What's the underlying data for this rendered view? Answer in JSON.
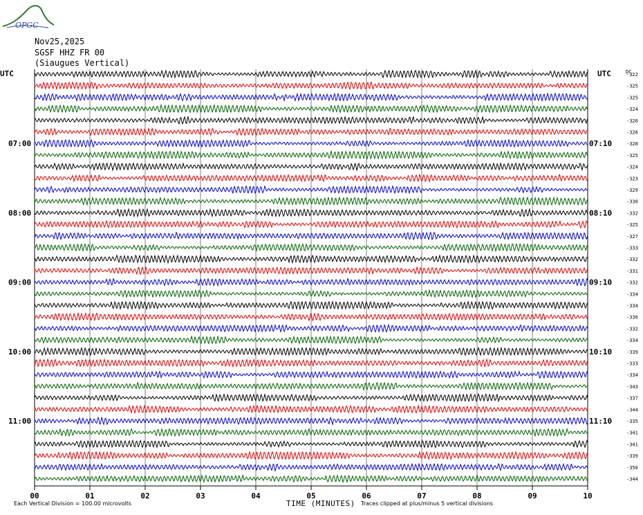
{
  "logo": {
    "text": "OPGC"
  },
  "header": {
    "date": "Nov25,2025",
    "station": "SGSF HHZ FR 00",
    "location": "(Siaugues Vertical)"
  },
  "chart_data": {
    "type": "line",
    "title": "",
    "xlabel": "TIME (MINUTES)",
    "xlim": [
      0,
      10
    ],
    "x_ticks": [
      "00",
      "01",
      "02",
      "03",
      "04",
      "05",
      "06",
      "07",
      "08",
      "09",
      "10"
    ],
    "left_axis_label": "UTC",
    "right_axis_label": "UTC",
    "dc_label": "DC",
    "left_time_labels": [
      {
        "row": 6,
        "label": "07:00"
      },
      {
        "row": 12,
        "label": "08:00"
      },
      {
        "row": 18,
        "label": "09:00"
      },
      {
        "row": 24,
        "label": "10:00"
      },
      {
        "row": 30,
        "label": "11:00"
      }
    ],
    "right_time_labels": [
      {
        "row": 6,
        "label": "07:10"
      },
      {
        "row": 12,
        "label": "08:10"
      },
      {
        "row": 18,
        "label": "09:10"
      },
      {
        "row": 24,
        "label": "10:10"
      },
      {
        "row": 30,
        "label": "11:10"
      }
    ],
    "trace_colors": [
      "#000000",
      "#e00000",
      "#0000d0",
      "#006000"
    ],
    "dc_offsets": [
      -322,
      -325,
      -325,
      -324,
      -326,
      -326,
      -328,
      -325,
      -324,
      -323,
      -329,
      -330,
      -332,
      -325,
      -327,
      -333,
      -332,
      -331,
      -332,
      -334,
      -334,
      -336,
      -332,
      -334,
      -339,
      -333,
      -334,
      -343,
      -337,
      -344,
      -335,
      -341,
      -341,
      -339,
      -350,
      -344
    ],
    "footer_left": "Each Vertical Division = 100.00 microvolts",
    "footer_right": "Traces clipped at plus/minus 5 vertical divisions"
  }
}
